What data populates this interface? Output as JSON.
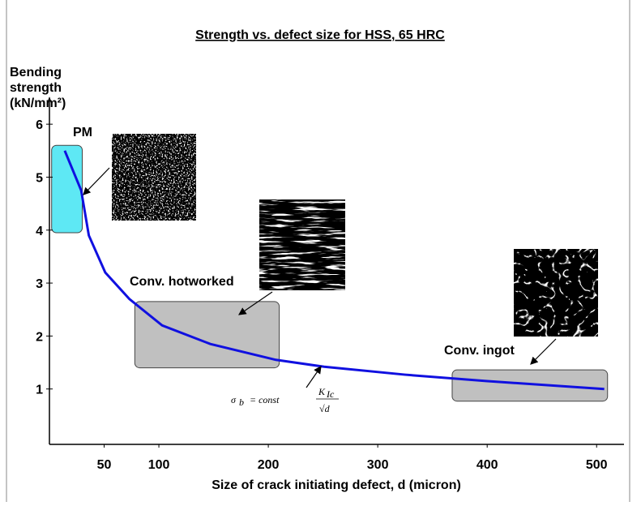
{
  "chart_data": {
    "type": "line",
    "title": "Strength vs. defect size for HSS,  65 HRC",
    "ylabel": [
      "Bending",
      "strength",
      "(kN/mm²)"
    ],
    "xlabel": "Size of crack initiating defect, d  (micron)",
    "xlim": [
      0,
      525
    ],
    "ylim": [
      0,
      6.5
    ],
    "xticks": [
      50,
      100,
      200,
      300,
      400,
      500
    ],
    "yticks": [
      1,
      2,
      3,
      4,
      5,
      6
    ],
    "series": [
      {
        "color": "#1010e0",
        "x": [
          14,
          29,
          36,
          51,
          73,
          103,
          147,
          207,
          251,
          325,
          399,
          507
        ],
        "values": [
          5.5,
          4.75,
          3.9,
          3.2,
          2.7,
          2.2,
          1.85,
          1.55,
          1.42,
          1.27,
          1.15,
          1.0
        ]
      }
    ],
    "regions": [
      {
        "label": "PM",
        "xlim": [
          2,
          30
        ],
        "ylim": [
          3.95,
          5.6
        ],
        "color": "#5ee8f4"
      },
      {
        "label": "Conv. hotworked",
        "xlim": [
          78,
          210
        ],
        "ylim": [
          1.4,
          2.65
        ],
        "color": "#c0c0c0"
      },
      {
        "label": "Conv. ingot",
        "xlim": [
          368,
          510
        ],
        "ylim": [
          0.77,
          1.36
        ],
        "color": "#c0c0c0"
      }
    ],
    "formula": {
      "lhs": "σ",
      "lhs_sub": "b",
      "eq": "= const",
      "num": "K",
      "num_sub": "Ic",
      "den": "√d"
    }
  }
}
